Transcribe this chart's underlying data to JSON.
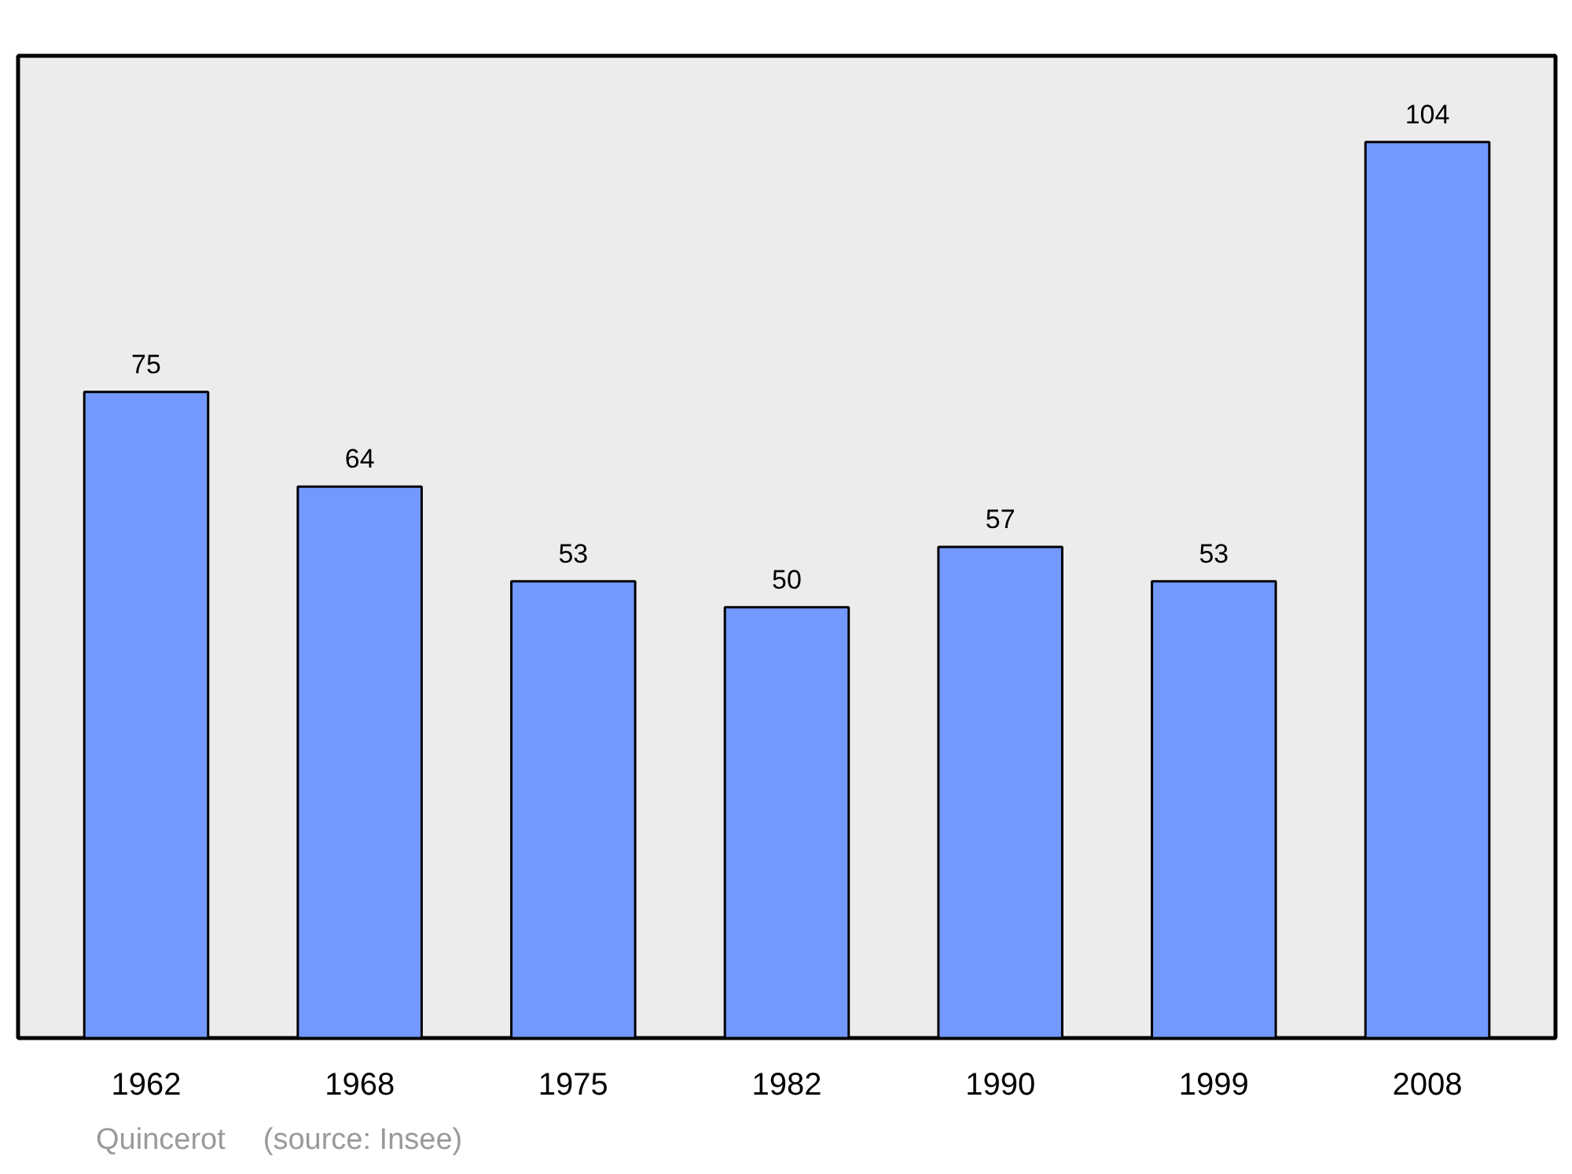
{
  "chart_data": {
    "type": "bar",
    "categories": [
      "1962",
      "1968",
      "1975",
      "1982",
      "1990",
      "1999",
      "2008"
    ],
    "values": [
      75,
      64,
      53,
      50,
      57,
      53,
      104
    ],
    "color": "#7399ff",
    "ylim": [
      0,
      114
    ],
    "data_labels": true,
    "grid": false,
    "tick_labels": "x",
    "annotations": [
      "Quincerot",
      "(source: Insee)"
    ]
  }
}
